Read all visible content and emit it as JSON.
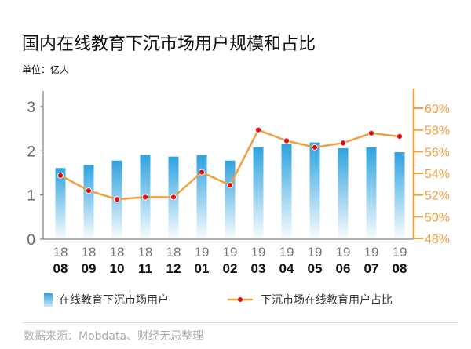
{
  "title": "国内在线教育下沉市场用户规模和占比",
  "unit": "单位：亿人",
  "source": "数据来源：Mobdata、财经无忌整理",
  "chart_data": {
    "type": "bar+line",
    "categories": [
      [
        "18",
        "08"
      ],
      [
        "18",
        "09"
      ],
      [
        "18",
        "10"
      ],
      [
        "18",
        "11"
      ],
      [
        "18",
        "12"
      ],
      [
        "19",
        "01"
      ],
      [
        "19",
        "02"
      ],
      [
        "19",
        "03"
      ],
      [
        "19",
        "04"
      ],
      [
        "19",
        "05"
      ],
      [
        "19",
        "06"
      ],
      [
        "19",
        "07"
      ],
      [
        "19",
        "08"
      ]
    ],
    "series": [
      {
        "name": "在线教育下沉市场用户",
        "type": "bar",
        "axis": "left",
        "color": "#2fa3df",
        "values": [
          1.61,
          1.68,
          1.78,
          1.91,
          1.87,
          1.9,
          1.78,
          2.08,
          2.15,
          2.19,
          2.06,
          2.08,
          1.97
        ]
      },
      {
        "name": "下沉市场在线教育用户占比",
        "type": "line",
        "axis": "right",
        "color": "#f0a040",
        "marker_color": "#e01010",
        "values": [
          53.8,
          52.4,
          51.6,
          51.8,
          51.8,
          54.1,
          52.9,
          58.0,
          57.0,
          56.4,
          56.8,
          57.7,
          57.4
        ]
      }
    ],
    "left_axis": {
      "range": [
        0,
        3
      ],
      "ticks": [
        "0",
        "1",
        "2",
        "3"
      ]
    },
    "right_axis": {
      "range": [
        48,
        60
      ],
      "ticks": [
        "48%",
        "50%",
        "52%",
        "54%",
        "56%",
        "58%",
        "60%"
      ],
      "color": "#f0a040"
    },
    "legend_position": "bottom",
    "grid": false
  }
}
